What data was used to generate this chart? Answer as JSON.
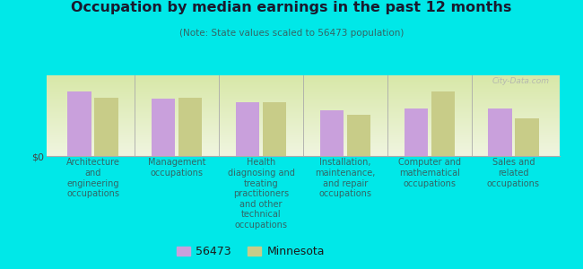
{
  "title": "Occupation by median earnings in the past 12 months",
  "subtitle": "(Note: State values scaled to 56473 population)",
  "background_color": "#00e8e8",
  "categories": [
    "Architecture\nand\nengineering\noccupations",
    "Management\noccupations",
    "Health\ndiagnosing and\ntreating\npractitioners\nand other\ntechnical\noccupations",
    "Installation,\nmaintenance,\nand repair\noccupations",
    "Computer and\nmathematical\noccupations",
    "Sales and\nrelated\noccupations"
  ],
  "values_56473": [
    0.82,
    0.72,
    0.68,
    0.58,
    0.6,
    0.6
  ],
  "values_mn": [
    0.74,
    0.74,
    0.68,
    0.52,
    0.82,
    0.48
  ],
  "color_56473": "#c9a0dc",
  "color_mn": "#c8cc88",
  "ylabel": "$0",
  "legend_label_1": "56473",
  "legend_label_2": "Minnesota",
  "watermark": "City-Data.com",
  "title_color": "#1a1a2e",
  "subtitle_color": "#336666",
  "label_color": "#336666"
}
